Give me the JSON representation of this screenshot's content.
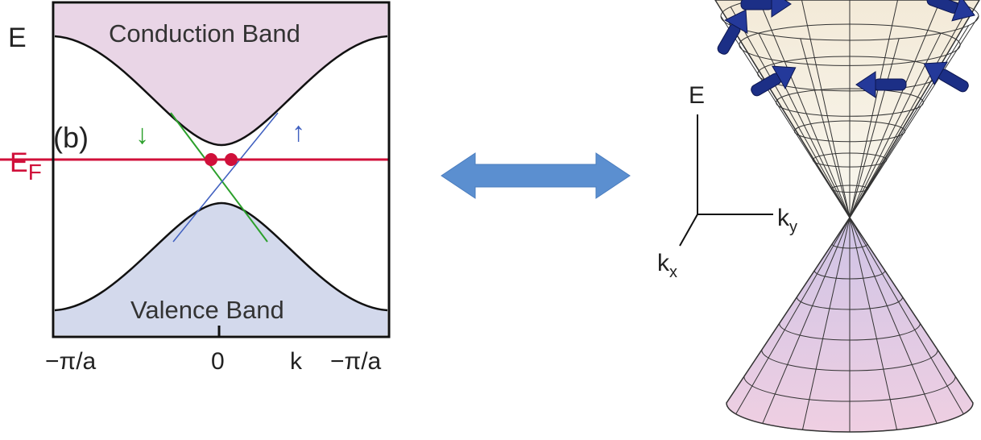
{
  "band_diagram": {
    "energy_axis": "E",
    "conduction_band": "Conduction Band",
    "valence_band": "Valence Band",
    "panel_label": "(b)",
    "spin_down": "↓",
    "spin_up": "↑",
    "fermi_level": {
      "main": "E",
      "sub": "F"
    },
    "x_ticks": [
      "−π/a",
      "0",
      "k",
      "−π/a"
    ]
  },
  "dirac_cone": {
    "energy_axis": "E",
    "ky_axis": {
      "main": "k",
      "sub": "y"
    },
    "kx_axis": {
      "main": "k",
      "sub": "x"
    }
  }
}
